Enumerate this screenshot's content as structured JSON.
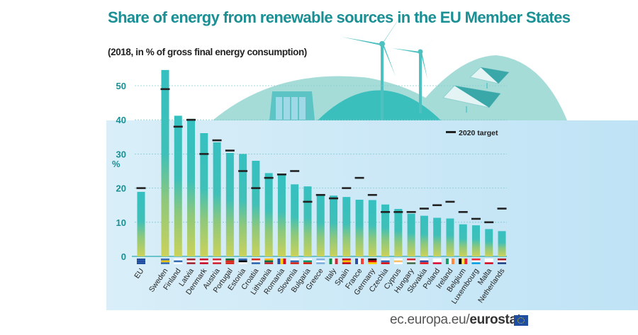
{
  "chart_data": {
    "type": "bar",
    "title": "Share of energy from renewable sources in the EU Member States",
    "subtitle": "(2018, in % of gross final energy consumption)",
    "xlabel": "",
    "ylabel": "%",
    "ylim": [
      0,
      55
    ],
    "yticks": [
      0,
      10,
      20,
      30,
      40,
      50
    ],
    "grid": true,
    "legend": {
      "label": "2020 target",
      "placement": "top-right"
    },
    "categories": [
      "EU",
      "Sweden",
      "Finland",
      "Latvia",
      "Denmark",
      "Austria",
      "Portugal",
      "Estonia",
      "Croatia",
      "Lithuania",
      "Romania",
      "Slovenia",
      "Bulgaria",
      "Greece",
      "Italy",
      "Spain",
      "France",
      "Germany",
      "Czechia",
      "Cyprus",
      "Hungary",
      "Slovakia",
      "Poland",
      "Ireland",
      "Belgium",
      "Luxembourg",
      "Malta",
      "Netherlands"
    ],
    "series": [
      {
        "name": "2018 share",
        "values": [
          18.9,
          54.6,
          41.2,
          40.3,
          36.1,
          33.4,
          30.3,
          30.0,
          28.0,
          24.4,
          23.9,
          21.1,
          20.5,
          18.0,
          17.8,
          17.4,
          16.6,
          16.5,
          15.2,
          13.9,
          12.5,
          11.9,
          11.3,
          11.1,
          9.4,
          9.1,
          8.0,
          7.4
        ]
      },
      {
        "name": "2020 target",
        "values": [
          20,
          49,
          38,
          40,
          30,
          34,
          31,
          25,
          20,
          23,
          24,
          25,
          16,
          18,
          17,
          20,
          23,
          18,
          13,
          13,
          13,
          14,
          15,
          16,
          13,
          11,
          10,
          14
        ]
      }
    ],
    "flags": [
      "eu",
      "se",
      "fi",
      "lv",
      "dk",
      "at",
      "pt",
      "ee",
      "hr",
      "lt",
      "ro",
      "si",
      "bg",
      "gr",
      "it",
      "es",
      "fr",
      "de",
      "cz",
      "cy",
      "hu",
      "sk",
      "pl",
      "ie",
      "be",
      "lu",
      "mt",
      "nl"
    ]
  },
  "footer": {
    "source_prefix": "ec.europa.eu/",
    "source_brand": "eurostat"
  },
  "colors": {
    "title": "#1a8f94",
    "bar_top": "#35c0c0",
    "bar_bottom": "#c6d15c",
    "target": "#222222",
    "panel": "#cce8f5",
    "hill": "#a6dcd8"
  }
}
